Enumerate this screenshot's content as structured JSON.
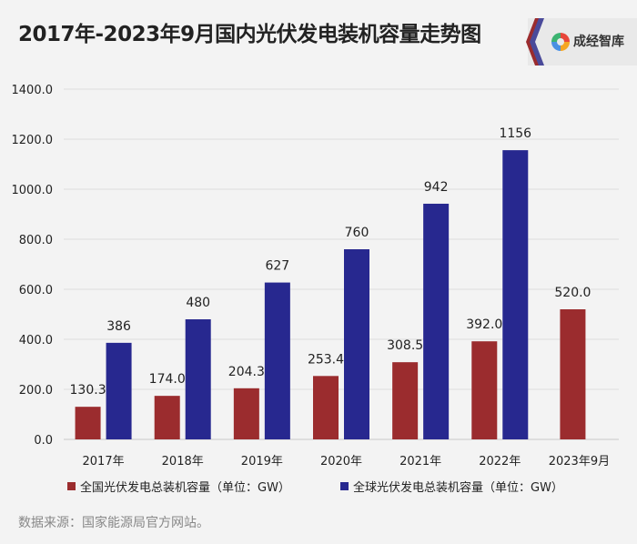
{
  "title": "2017年-2023年9月国内光伏发电装机容量走势图",
  "brand": {
    "name": "成经智库",
    "logo_icon": "colorful-ring-logo"
  },
  "source": "数据来源：国家能源局官方网站。",
  "chart_data": {
    "type": "bar",
    "categories": [
      "2017年",
      "2018年",
      "2019年",
      "2020年",
      "2021年",
      "2022年",
      "2023年9月"
    ],
    "series": [
      {
        "name": "全国光伏发电总装机容量（单位：GW）",
        "color": "#9b2c2e",
        "values": [
          130.3,
          174.0,
          204.3,
          253.4,
          308.5,
          392.0,
          520.0
        ],
        "labels": [
          "130.3",
          "174.0",
          "204.3",
          "253.4",
          "308.5",
          "392.0",
          "520.0"
        ]
      },
      {
        "name": "全球光伏发电总装机容量（单位：GW）",
        "color": "#27288f",
        "values": [
          386,
          480,
          627,
          760,
          942,
          1156,
          null
        ],
        "labels": [
          "386",
          "480",
          "627",
          "760",
          "942",
          "1156",
          ""
        ]
      }
    ],
    "ylim": [
      0,
      1400
    ],
    "yticks": [
      "0.0",
      "200.0",
      "400.0",
      "600.0",
      "800.0",
      "1000.0",
      "1200.0",
      "1400.0"
    ],
    "ytick_values": [
      0,
      200,
      400,
      600,
      800,
      1000,
      1200,
      1400
    ],
    "grid": true,
    "legend": "bottom"
  }
}
